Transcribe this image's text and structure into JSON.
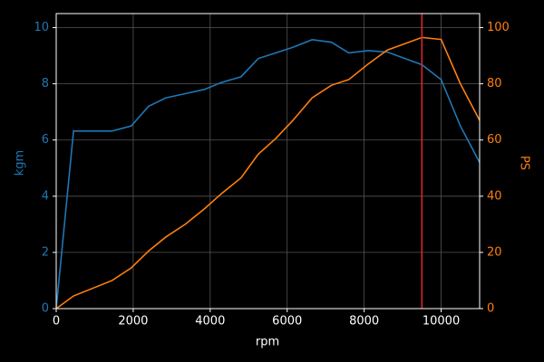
{
  "chart_data": {
    "type": "line",
    "xlabel": "rpm",
    "ylabel": "kgm",
    "y2label": "PS",
    "x": [
      0,
      450,
      1450,
      1950,
      2400,
      2850,
      3350,
      3850,
      4300,
      4800,
      5250,
      5700,
      6150,
      6650,
      7150,
      7600,
      8100,
      8600,
      9500,
      10000,
      10500,
      11000
    ],
    "series": [
      {
        "name": "kgm",
        "color": "#1f77b4",
        "axis": "y",
        "values": [
          0,
          6.32,
          6.32,
          6.5,
          7.2,
          7.5,
          7.65,
          7.8,
          8.05,
          8.25,
          8.9,
          9.1,
          9.3,
          9.57,
          9.48,
          9.1,
          9.18,
          9.13,
          8.68,
          8.15,
          6.5,
          5.2
        ]
      },
      {
        "name": "PS",
        "color": "#ff7f0e",
        "axis": "y2",
        "values": [
          0,
          4.5,
          10,
          14.5,
          20.5,
          25.5,
          30,
          35.5,
          41,
          46.5,
          55,
          60.5,
          67,
          75,
          79.5,
          81.5,
          87,
          92,
          96.5,
          95.8,
          80,
          67
        ]
      }
    ],
    "vline": {
      "x": 9500,
      "color": "#d62728"
    },
    "xlim": [
      0,
      11000
    ],
    "xticks": [
      0,
      2000,
      4000,
      6000,
      8000,
      10000
    ],
    "ylim": [
      0,
      10.5
    ],
    "yticks": [
      0,
      2,
      4,
      6,
      8,
      10
    ],
    "y2lim": [
      0,
      105
    ],
    "y2ticks": [
      0,
      20,
      40,
      60,
      80,
      100
    ],
    "grid": true
  }
}
